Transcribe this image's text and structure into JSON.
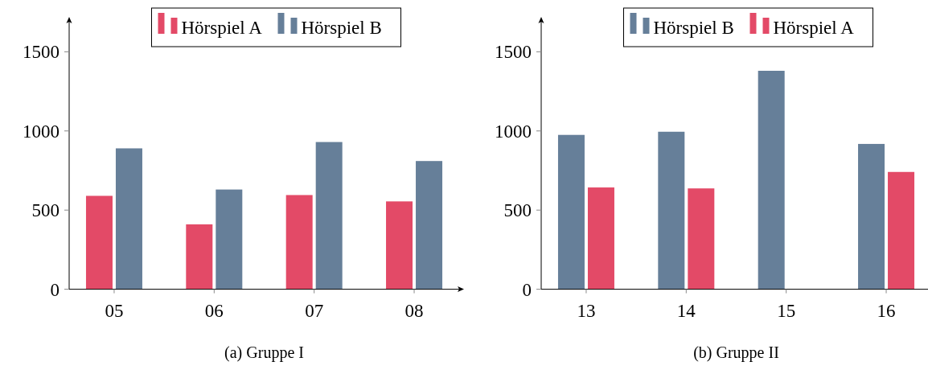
{
  "chart_data": [
    {
      "type": "bar",
      "title": "(a)  Gruppe I",
      "categories": [
        "05",
        "06",
        "07",
        "08"
      ],
      "series": [
        {
          "name": "Hörspiel A",
          "color": "#e34a67",
          "values": [
            590,
            410,
            595,
            555
          ]
        },
        {
          "name": "Hörspiel B",
          "color": "#667f99",
          "values": [
            890,
            630,
            930,
            810
          ]
        }
      ],
      "ylim": [
        0,
        1690
      ],
      "yticks": [
        0,
        500,
        1000,
        1500
      ],
      "legend": "top"
    },
    {
      "type": "bar",
      "title": "(b)  Gruppe II",
      "categories": [
        "13",
        "14",
        "15",
        "16"
      ],
      "series": [
        {
          "name": "Hörspiel B",
          "color": "#667f99",
          "values": [
            975,
            995,
            1380,
            918
          ]
        },
        {
          "name": "Hörspiel A",
          "color": "#e34a67",
          "values": [
            643,
            637,
            0,
            741
          ]
        }
      ],
      "ylim": [
        0,
        1690
      ],
      "yticks": [
        0,
        500,
        1000,
        1500
      ],
      "legend": "top"
    }
  ]
}
